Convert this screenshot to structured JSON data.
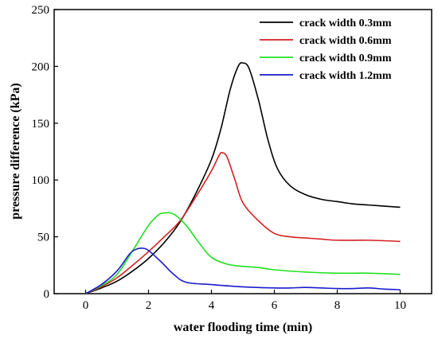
{
  "chart_data": {
    "type": "line",
    "xlabel": "water flooding time (min)",
    "ylabel": "pressure difference (kPa)",
    "xlim": [
      -1,
      11
    ],
    "ylim": [
      0,
      250
    ],
    "xticks": [
      0,
      2,
      4,
      6,
      8,
      10
    ],
    "yticks": [
      0,
      50,
      100,
      150,
      200,
      250
    ],
    "grid": false,
    "legend_position": "top-right",
    "series": [
      {
        "name": "crack width 0.3mm",
        "color": "#000000",
        "points": [
          [
            0,
            0
          ],
          [
            0.5,
            5
          ],
          [
            1,
            11
          ],
          [
            1.5,
            20
          ],
          [
            2,
            31
          ],
          [
            2.5,
            45
          ],
          [
            3,
            63
          ],
          [
            3.5,
            88
          ],
          [
            4,
            118
          ],
          [
            4.3,
            145
          ],
          [
            4.6,
            180
          ],
          [
            4.85,
            200
          ],
          [
            5,
            203
          ],
          [
            5.2,
            198
          ],
          [
            5.5,
            170
          ],
          [
            5.8,
            135
          ],
          [
            6.1,
            110
          ],
          [
            6.5,
            95
          ],
          [
            7,
            87
          ],
          [
            7.5,
            83
          ],
          [
            8,
            81
          ],
          [
            8.5,
            79
          ],
          [
            9,
            78
          ],
          [
            9.5,
            77
          ],
          [
            10,
            76
          ]
        ]
      },
      {
        "name": "crack width 0.6mm",
        "color": "#d42020",
        "points": [
          [
            0,
            0
          ],
          [
            0.5,
            6
          ],
          [
            1,
            14
          ],
          [
            1.5,
            25
          ],
          [
            2,
            37
          ],
          [
            2.5,
            50
          ],
          [
            3,
            64
          ],
          [
            3.5,
            85
          ],
          [
            4,
            108
          ],
          [
            4.25,
            122
          ],
          [
            4.35,
            124
          ],
          [
            4.5,
            120
          ],
          [
            4.75,
            100
          ],
          [
            5,
            80
          ],
          [
            5.5,
            64
          ],
          [
            6,
            53
          ],
          [
            6.5,
            50
          ],
          [
            7,
            49
          ],
          [
            7.5,
            48
          ],
          [
            8,
            47
          ],
          [
            9,
            47
          ],
          [
            10,
            46
          ]
        ]
      },
      {
        "name": "crack width 0.9mm",
        "color": "#20e020",
        "points": [
          [
            0,
            0
          ],
          [
            0.5,
            7
          ],
          [
            1,
            17
          ],
          [
            1.5,
            38
          ],
          [
            2,
            60
          ],
          [
            2.3,
            69
          ],
          [
            2.5,
            71
          ],
          [
            2.8,
            70
          ],
          [
            3.2,
            60
          ],
          [
            3.6,
            45
          ],
          [
            4,
            32
          ],
          [
            4.5,
            26
          ],
          [
            5,
            24
          ],
          [
            5.5,
            23
          ],
          [
            6,
            21
          ],
          [
            7,
            19
          ],
          [
            8,
            18
          ],
          [
            9,
            18
          ],
          [
            10,
            17
          ]
        ]
      },
      {
        "name": "crack width 1.2mm",
        "color": "#1a1acc",
        "points": [
          [
            0,
            0
          ],
          [
            0.5,
            8
          ],
          [
            1,
            20
          ],
          [
            1.4,
            35
          ],
          [
            1.6,
            39
          ],
          [
            1.8,
            40
          ],
          [
            2,
            38
          ],
          [
            2.4,
            28
          ],
          [
            2.8,
            17
          ],
          [
            3.2,
            10
          ],
          [
            4,
            8
          ],
          [
            5,
            6
          ],
          [
            6,
            5
          ],
          [
            6.5,
            5
          ],
          [
            7,
            5.5
          ],
          [
            7.5,
            5
          ],
          [
            8,
            4.5
          ],
          [
            8.5,
            4.5
          ],
          [
            9,
            5
          ],
          [
            9.5,
            4
          ],
          [
            10,
            3.5
          ]
        ]
      }
    ]
  }
}
